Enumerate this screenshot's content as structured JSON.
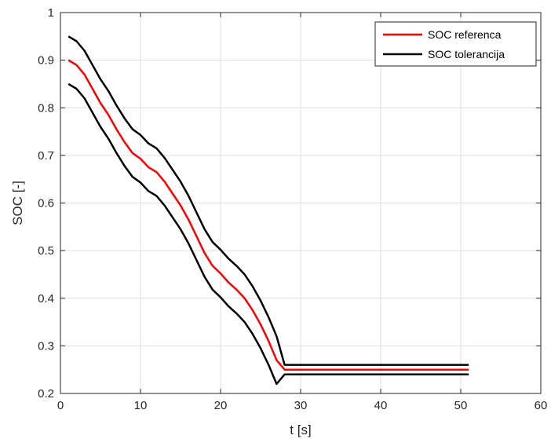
{
  "chart_data": {
    "type": "line",
    "title": "",
    "xlabel": "t [s]",
    "ylabel": "SOC [-]",
    "xlim": [
      0,
      60
    ],
    "ylim": [
      0.2,
      1
    ],
    "xticks": [
      0,
      10,
      20,
      30,
      40,
      50,
      60
    ],
    "yticks": [
      0.2,
      0.3,
      0.4,
      0.5,
      0.6,
      0.7,
      0.8,
      0.9,
      1
    ],
    "xtick_labels": [
      "0",
      "10",
      "20",
      "30",
      "40",
      "50",
      "60"
    ],
    "ytick_labels": [
      "0.2",
      "0.3",
      "0.4",
      "0.5",
      "0.6",
      "0.7",
      "0.8",
      "0.9",
      "1"
    ],
    "grid": true,
    "legend_position": "top-right",
    "legend": [
      "SOC referenca",
      "SOC tolerancija"
    ],
    "colors": {
      "reference": "#ff0000",
      "tolerance": "#000000",
      "grid": "#dfdfdf",
      "axes": "#262626"
    },
    "series": [
      {
        "name": "SOC referenca",
        "role": "reference",
        "x": [
          1,
          2,
          3,
          4,
          5,
          6,
          7,
          8,
          9,
          10,
          11,
          12,
          13,
          14,
          15,
          16,
          17,
          18,
          19,
          20,
          21,
          22,
          23,
          24,
          25,
          26,
          27,
          28,
          29,
          51
        ],
        "y": [
          0.9,
          0.89,
          0.87,
          0.84,
          0.81,
          0.785,
          0.755,
          0.728,
          0.705,
          0.693,
          0.675,
          0.665,
          0.645,
          0.62,
          0.595,
          0.565,
          0.53,
          0.495,
          0.468,
          0.452,
          0.433,
          0.418,
          0.4,
          0.375,
          0.345,
          0.31,
          0.27,
          0.25,
          0.25,
          0.25
        ]
      },
      {
        "name": "SOC tolerancija",
        "role": "tolerance-upper",
        "x": [
          1,
          2,
          3,
          4,
          5,
          6,
          7,
          8,
          9,
          10,
          11,
          12,
          13,
          14,
          15,
          16,
          17,
          18,
          19,
          20,
          21,
          22,
          23,
          24,
          25,
          26,
          27,
          28,
          29,
          51
        ],
        "y": [
          0.95,
          0.94,
          0.92,
          0.89,
          0.86,
          0.835,
          0.805,
          0.778,
          0.755,
          0.743,
          0.725,
          0.715,
          0.695,
          0.67,
          0.645,
          0.615,
          0.58,
          0.545,
          0.518,
          0.502,
          0.483,
          0.468,
          0.45,
          0.425,
          0.395,
          0.36,
          0.32,
          0.26,
          0.26,
          0.26
        ]
      },
      {
        "name": "",
        "role": "tolerance-lower",
        "x": [
          1,
          2,
          3,
          4,
          5,
          6,
          7,
          8,
          9,
          10,
          11,
          12,
          13,
          14,
          15,
          16,
          17,
          18,
          19,
          20,
          21,
          22,
          23,
          24,
          25,
          26,
          27,
          28,
          29,
          51
        ],
        "y": [
          0.85,
          0.84,
          0.82,
          0.79,
          0.76,
          0.735,
          0.705,
          0.678,
          0.655,
          0.643,
          0.625,
          0.615,
          0.595,
          0.57,
          0.545,
          0.515,
          0.48,
          0.445,
          0.418,
          0.402,
          0.383,
          0.368,
          0.35,
          0.325,
          0.295,
          0.26,
          0.22,
          0.24,
          0.24,
          0.24
        ]
      }
    ]
  }
}
